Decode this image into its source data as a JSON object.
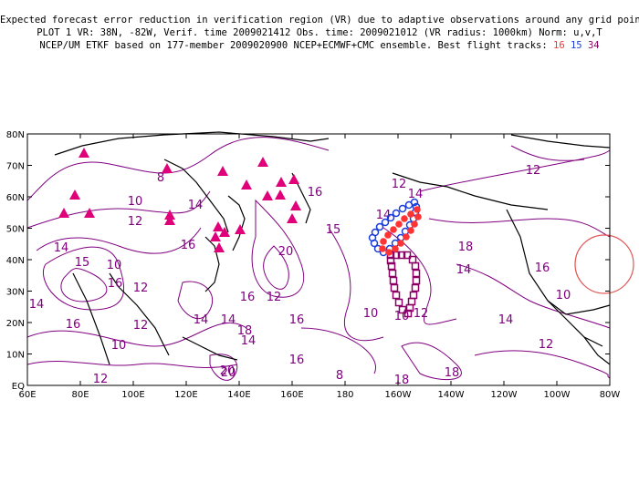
{
  "header": {
    "line1": "Expected forecast error reduction in verification region (VR) due to adaptive observations around any grid point.",
    "line2": "PLOT 1 VR: 38N, -82W, Verif. time 2009021412 Obs. time: 2009021012 (VR radius: 1000km) Norm: u,v,T",
    "line3_prefix": "NCEP/UM ETKF based on 177-member 2009020900 NCEP+ECMWF+CMC ensemble. Best flight tracks:",
    "track_a": "16",
    "track_b": "15",
    "track_c": "34"
  },
  "axes": {
    "lat_labels": [
      "80N",
      "70N",
      "60N",
      "50N",
      "40N",
      "30N",
      "20N",
      "10N",
      "EQ"
    ],
    "lon_labels": [
      "60E",
      "80E",
      "100E",
      "120E",
      "140E",
      "160E",
      "180",
      "160W",
      "140W",
      "120W",
      "100W",
      "80W"
    ]
  },
  "contour_labels": [
    "10",
    "12",
    "14",
    "16",
    "8",
    "10",
    "12",
    "16",
    "14",
    "15",
    "20",
    "14",
    "16",
    "12",
    "16",
    "18",
    "15",
    "10",
    "20",
    "12",
    "14",
    "16",
    "16",
    "14",
    "14",
    "12",
    "16",
    "14",
    "10",
    "18",
    "10",
    "12",
    "12",
    "14",
    "8",
    "18",
    "10",
    "12",
    "16",
    "18",
    "14",
    "12",
    "14",
    "20"
  ],
  "colors": {
    "track_a": "#ff3333",
    "track_b": "#1a3ddb",
    "track_c": "#8b0064",
    "contour": "#800080",
    "triangles": "#e0007a",
    "vr_circle": "#e05555"
  }
}
